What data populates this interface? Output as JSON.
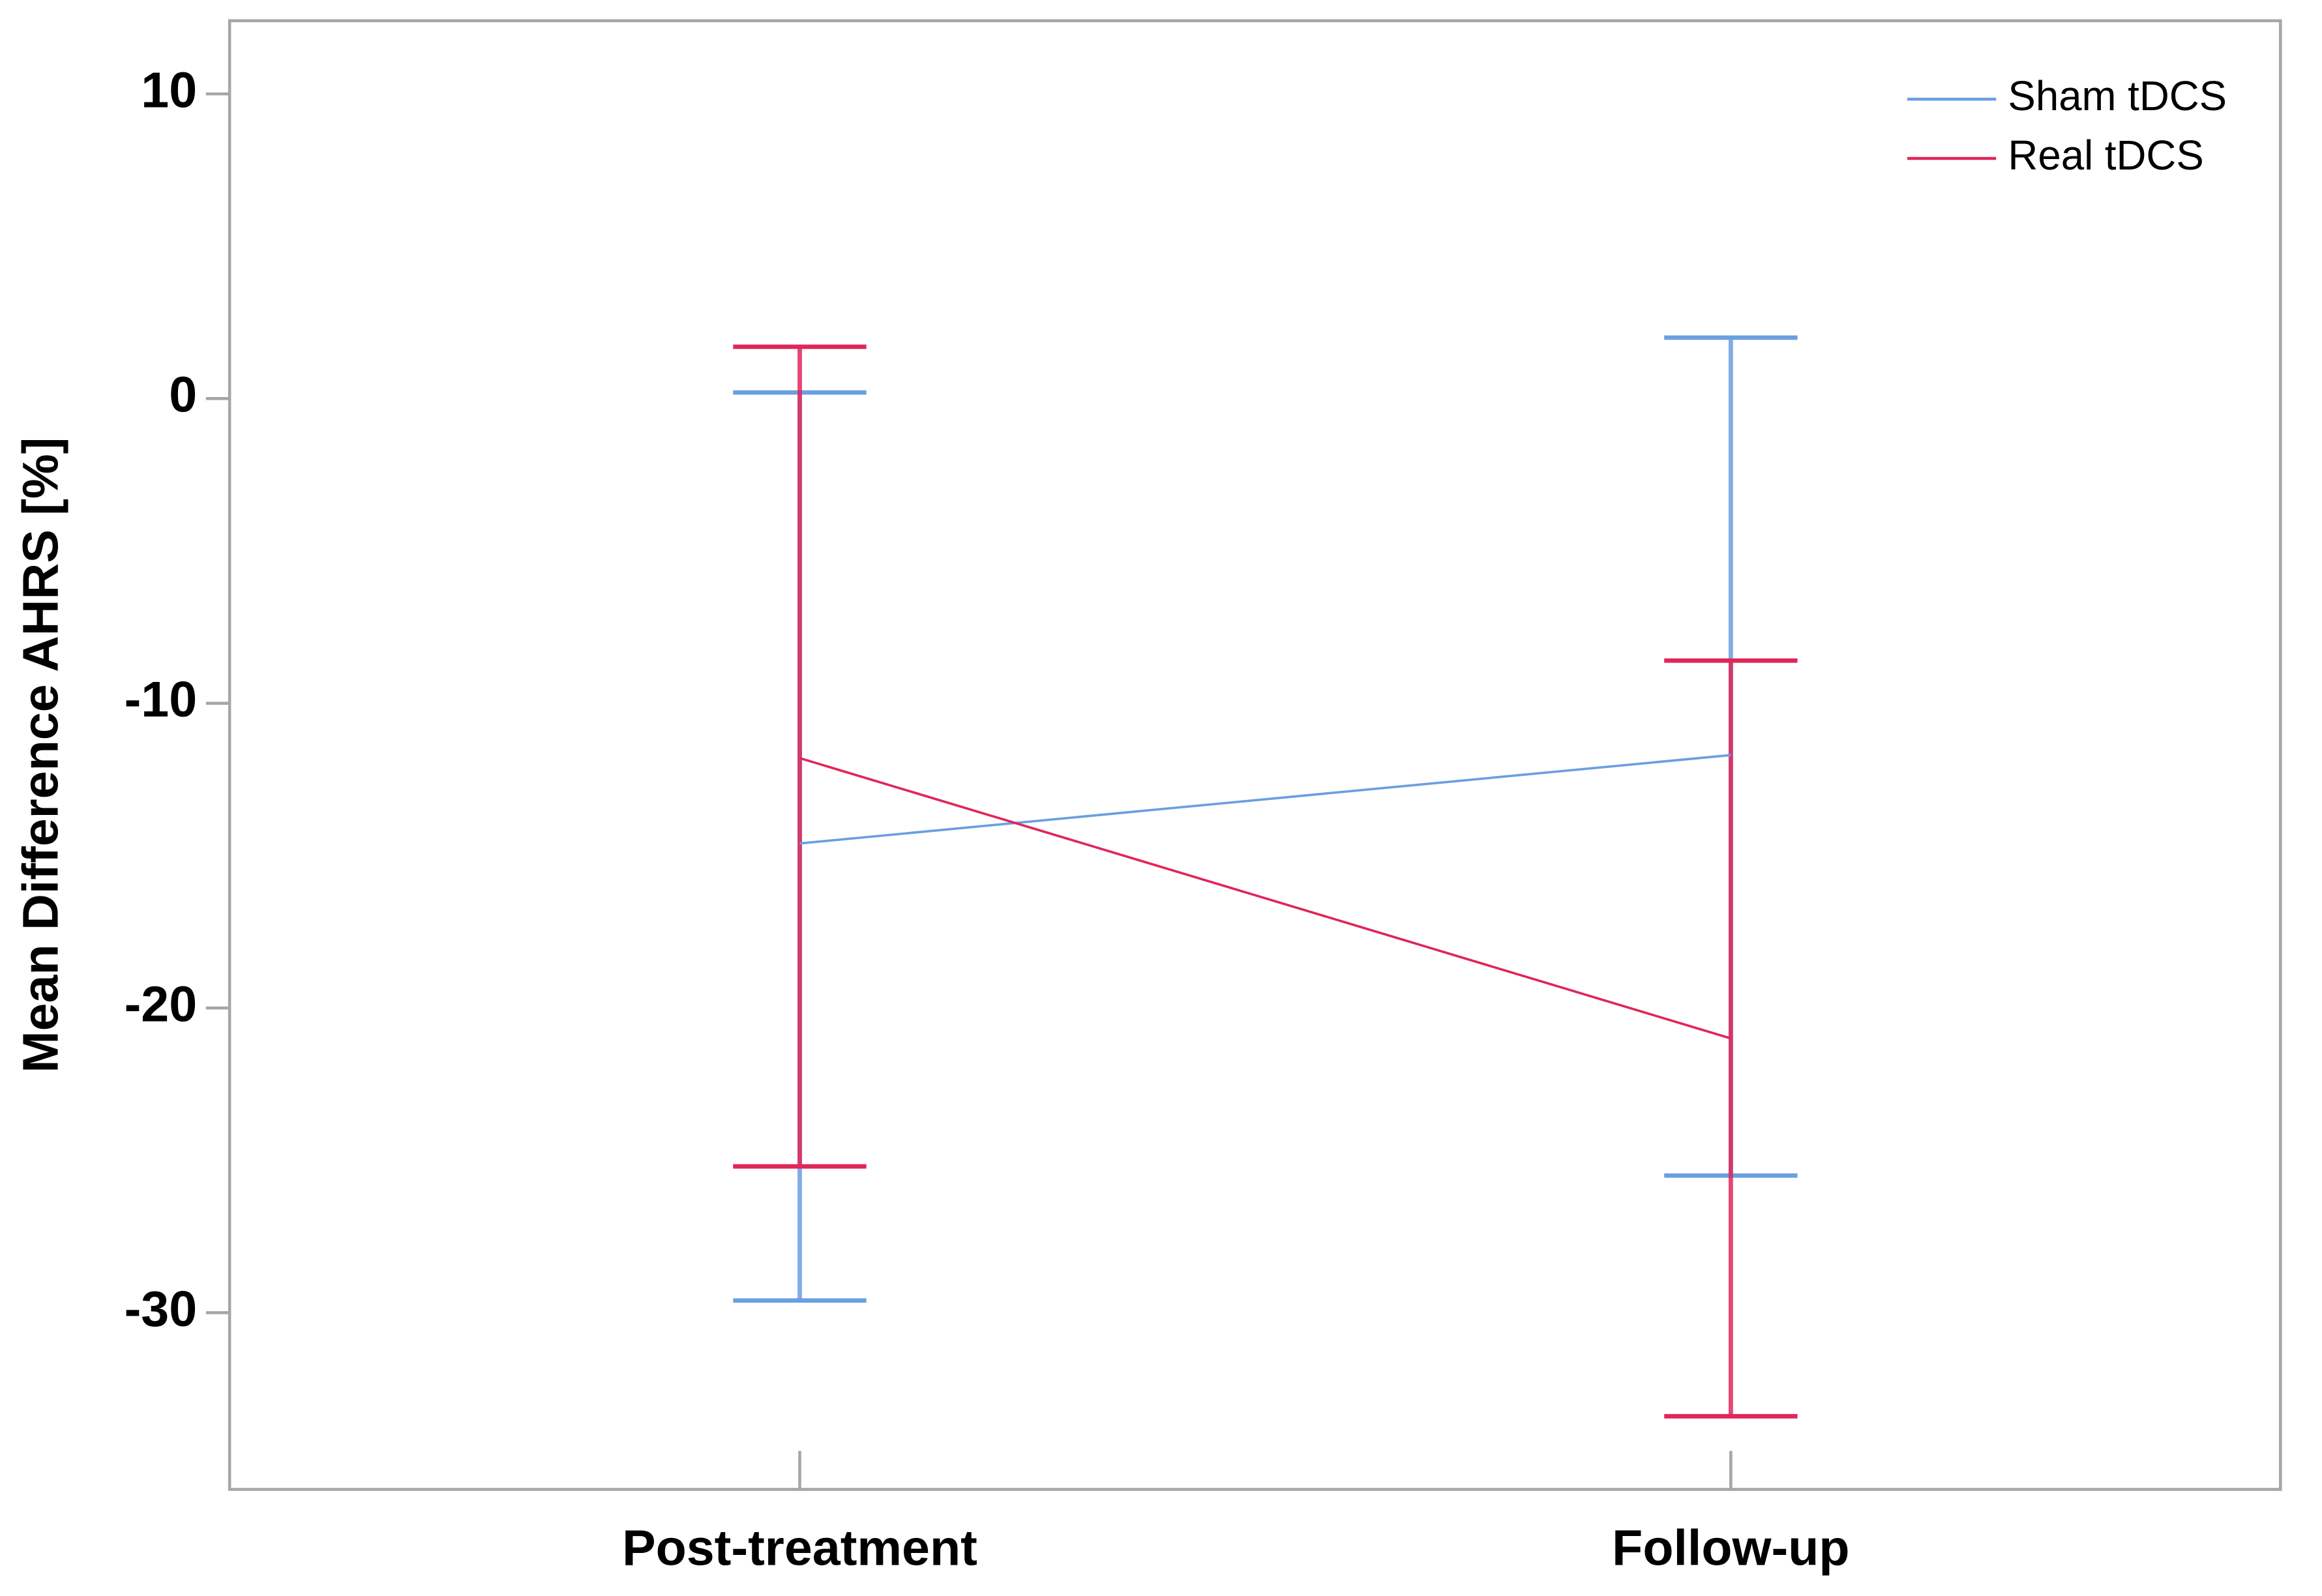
{
  "chart_data": {
    "type": "line_errorbar",
    "y_label": "Mean Difference AHRS [%]",
    "categories": [
      "Post-treatment",
      "Follow-up"
    ],
    "series": [
      {
        "name": "Sham tDCS",
        "color": "#6a9fe0",
        "values": [
          -14.6,
          -11.7
        ],
        "upper": [
          0.2,
          2.0
        ],
        "lower": [
          -29.6,
          -25.5
        ]
      },
      {
        "name": "Real tDCS",
        "color": "#e0265a",
        "values": [
          -11.8,
          -21.0
        ],
        "upper": [
          1.7,
          -8.6
        ],
        "lower": [
          -25.2,
          -33.4
        ]
      }
    ],
    "ylim": [
      -35.8,
      12.4
    ],
    "yticks": [
      10,
      0,
      -10,
      -20,
      -30
    ],
    "grid": false,
    "legend": "top-right"
  }
}
